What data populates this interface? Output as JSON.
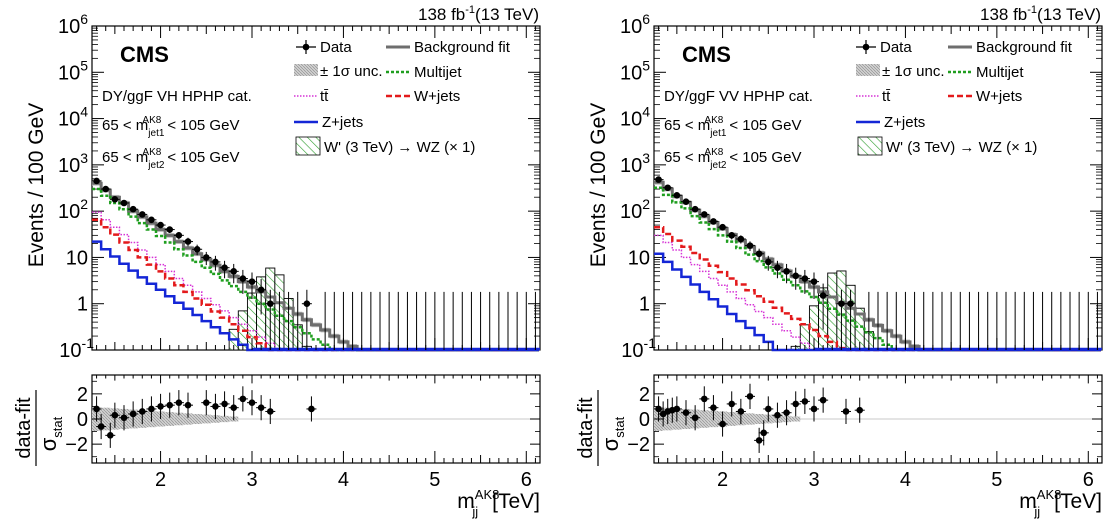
{
  "shared": {
    "lumi": "138 fb",
    "lumi_sup": "-1",
    "energy": "(13 TeV)",
    "experiment": "CMS",
    "ylabel": "Events / 100 GeV",
    "ratio_num": "data-fit",
    "ratio_den": "σ",
    "ratio_den_sub": "stat",
    "xlabel_main": "m",
    "xlabel_sup": "AK8",
    "xlabel_sub": "jj",
    "xlabel_unit": "[TeV]",
    "cut1_prefix": "65 < m",
    "cut1_sub": "jet1",
    "cut2_sub": "jet2",
    "cut_sup": "AK8",
    "cut_suffix": "< 105 GeV",
    "legend": {
      "data": "Data",
      "unc": "± 1σ unc.",
      "ttbar": "tt̄",
      "zjets": "Z+jets",
      "bkgfit": "Background fit",
      "multijet": "Multijet",
      "wjets": "W+jets",
      "signal": "W' (3 TeV) → WZ (× 1)"
    },
    "colors": {
      "bkgfit": "#6e6e6e",
      "multijet": "#1f9e1f",
      "wjets": "#e31a1c",
      "ttbar": "#d633d6",
      "zjets": "#1426d6",
      "signal_hatch": "#2e9e2e",
      "unc_band": "#9a9a9a"
    }
  },
  "chart_data": [
    {
      "type": "histogram",
      "category": "DY/ggF VH HPHP cat.",
      "x_edges_start": 1.25,
      "bin_width": 0.1,
      "xlim": [
        1.25,
        6.15
      ],
      "ylim": [
        0.1,
        1000000
      ],
      "yscale": "log",
      "x_ticks": [
        2,
        3,
        4,
        5,
        6
      ],
      "y_ticks": [
        "10^-1",
        "1",
        "10",
        "10^2",
        "10^3",
        "10^4",
        "10^5",
        "10^6"
      ],
      "ratio_ylim": [
        -3.5,
        3.5
      ],
      "ratio_ticks": [
        -2,
        0,
        2
      ],
      "series": [
        {
          "name": "Background fit",
          "values": [
            400,
            285,
            200,
            150,
            100,
            75,
            55,
            40,
            30,
            22,
            16,
            12,
            9,
            6.8,
            5,
            3.9,
            3,
            2.3,
            1.8,
            1.4,
            1.05,
            0.8,
            0.6,
            0.45,
            0.35,
            0.27,
            0.2,
            0.15,
            0.12
          ]
        },
        {
          "name": "Multijet",
          "values": [
            300,
            215,
            150,
            110,
            76,
            55,
            40,
            29,
            21,
            15,
            11,
            8,
            6,
            4.4,
            3.2,
            2.4,
            1.8,
            1.35,
            1.0,
            0.75,
            0.55,
            0.42,
            0.31,
            0.23,
            0.17,
            0.13,
            0.1
          ]
        },
        {
          "name": "tt̄",
          "values": [
            95,
            65,
            45,
            31,
            21,
            14.5,
            10,
            7,
            5,
            3.5,
            2.5,
            1.8,
            1.3,
            0.95,
            0.7,
            0.5,
            0.36,
            0.26,
            0.19,
            0.14,
            0.1
          ]
        },
        {
          "name": "W+jets",
          "values": [
            65,
            45,
            31,
            21,
            14.5,
            10,
            7,
            5,
            3.5,
            2.5,
            1.8,
            1.3,
            0.95,
            0.68,
            0.5,
            0.36,
            0.26,
            0.19,
            0.14,
            0.1
          ]
        },
        {
          "name": "Z+jets",
          "values": [
            22,
            15,
            10.5,
            7.3,
            5.2,
            3.7,
            2.7,
            2.0,
            1.45,
            1.05,
            0.78,
            0.57,
            0.42,
            0.31,
            0.23,
            0.17,
            0.13,
            0.1
          ]
        },
        {
          "name": "W' (3 TeV) → WZ (× 1)",
          "values": [
            0,
            0,
            0,
            0,
            0,
            0,
            0,
            0,
            0,
            0,
            0,
            0,
            0,
            0,
            0.1,
            0.28,
            0.7,
            1.7,
            3.8,
            5.9,
            4.2,
            1.3,
            0.35,
            0.12,
            0.1,
            0,
            0,
            0,
            0
          ]
        }
      ],
      "data_points": {
        "x": [
          1.3,
          1.4,
          1.5,
          1.6,
          1.7,
          1.8,
          1.9,
          2.0,
          2.1,
          2.2,
          2.3,
          2.4,
          2.5,
          2.6,
          2.7,
          2.8,
          2.9,
          3.0,
          3.1,
          3.2,
          3.6
        ],
        "y": [
          450,
          300,
          180,
          150,
          110,
          85,
          65,
          50,
          40,
          30,
          22,
          15,
          10,
          8,
          6,
          5,
          3.5,
          3,
          2,
          1,
          1
        ]
      },
      "ratio_points": {
        "x": [
          1.3,
          1.35,
          1.45,
          1.5,
          1.6,
          1.7,
          1.8,
          1.9,
          2.0,
          2.1,
          2.2,
          2.3,
          2.5,
          2.6,
          2.7,
          2.8,
          2.9,
          3.0,
          3.1,
          3.2,
          3.65
        ],
        "y": [
          0.8,
          -0.6,
          -1.3,
          0.3,
          0.1,
          0.4,
          0.6,
          0.8,
          1.0,
          1.1,
          1.3,
          1.1,
          1.3,
          1.0,
          1.2,
          0.9,
          1.6,
          1.3,
          0.9,
          0.6,
          0.8
        ]
      }
    },
    {
      "type": "histogram",
      "category": "DY/ggF VV HPHP cat.",
      "x_edges_start": 1.25,
      "bin_width": 0.1,
      "xlim": [
        1.25,
        6.15
      ],
      "ylim": [
        0.1,
        1000000
      ],
      "yscale": "log",
      "x_ticks": [
        2,
        3,
        4,
        5,
        6
      ],
      "y_ticks": [
        "10^-1",
        "1",
        "10",
        "10^2",
        "10^3",
        "10^4",
        "10^5",
        "10^6"
      ],
      "ratio_ylim": [
        -3.5,
        3.5
      ],
      "ratio_ticks": [
        -2,
        0,
        2
      ],
      "series": [
        {
          "name": "Background fit",
          "values": [
            420,
            300,
            210,
            155,
            105,
            78,
            57,
            42,
            31,
            23,
            17,
            12.5,
            9.2,
            6.9,
            5.1,
            3.9,
            3,
            2.3,
            1.8,
            1.4,
            1.05,
            0.8,
            0.6,
            0.45,
            0.34,
            0.26,
            0.2,
            0.15,
            0.12
          ]
        },
        {
          "name": "Multijet",
          "values": [
            320,
            225,
            155,
            115,
            78,
            57,
            41,
            30,
            22,
            16,
            11.5,
            8.3,
            6.1,
            4.5,
            3.3,
            2.5,
            1.85,
            1.4,
            1.05,
            0.78,
            0.58,
            0.43,
            0.32,
            0.24,
            0.18,
            0.13,
            0.1
          ]
        },
        {
          "name": "tt̄",
          "values": [
            30,
            21,
            14.5,
            10,
            7,
            5,
            3.5,
            2.5,
            1.8,
            1.3,
            0.95,
            0.68,
            0.5,
            0.36,
            0.26,
            0.19,
            0.14,
            0.1
          ]
        },
        {
          "name": "W+jets",
          "values": [
            45,
            32,
            23,
            17,
            12.5,
            9,
            6.6,
            4.8,
            3.5,
            2.6,
            1.95,
            1.45,
            1.1,
            0.82,
            0.62,
            0.47,
            0.36,
            0.27,
            0.2,
            0.15,
            0.11,
            0.1
          ]
        },
        {
          "name": "Z+jets",
          "values": [
            12,
            8,
            5.5,
            3.8,
            2.6,
            1.8,
            1.25,
            0.87,
            0.6,
            0.42,
            0.3,
            0.21,
            0.15,
            0.1
          ]
        },
        {
          "name": "W' (3 TeV) → WZ (× 1)",
          "values": [
            0,
            0,
            0,
            0,
            0,
            0,
            0,
            0,
            0,
            0,
            0,
            0,
            0,
            0,
            0,
            0.12,
            0.35,
            0.9,
            2.2,
            4.6,
            5.1,
            2.5,
            0.8,
            0.25,
            0.1,
            0,
            0,
            0,
            0
          ]
        }
      ],
      "data_points": {
        "x": [
          1.3,
          1.4,
          1.5,
          1.6,
          1.7,
          1.8,
          1.9,
          2.0,
          2.1,
          2.2,
          2.3,
          2.4,
          2.5,
          2.6,
          2.7,
          2.8,
          2.9,
          3.0,
          3.1,
          3.3,
          3.4
        ],
        "y": [
          480,
          320,
          220,
          160,
          110,
          85,
          60,
          45,
          30,
          25,
          18,
          12,
          8,
          6,
          5,
          4,
          3.5,
          3,
          1.5,
          1,
          1
        ]
      },
      "ratio_points": {
        "x": [
          1.3,
          1.35,
          1.4,
          1.45,
          1.5,
          1.6,
          1.7,
          1.8,
          1.9,
          2.0,
          2.1,
          2.2,
          2.3,
          2.4,
          2.45,
          2.5,
          2.6,
          2.7,
          2.8,
          2.9,
          3.0,
          3.1,
          3.35,
          3.5
        ],
        "y": [
          0.8,
          0.4,
          0.6,
          0.7,
          0.8,
          0.5,
          0.1,
          1.6,
          0.9,
          -0.4,
          1.2,
          0.6,
          1.8,
          -1.7,
          -1.1,
          0.8,
          0.3,
          0.5,
          1.2,
          1.4,
          0.8,
          1.5,
          0.6,
          0.7
        ]
      }
    }
  ]
}
